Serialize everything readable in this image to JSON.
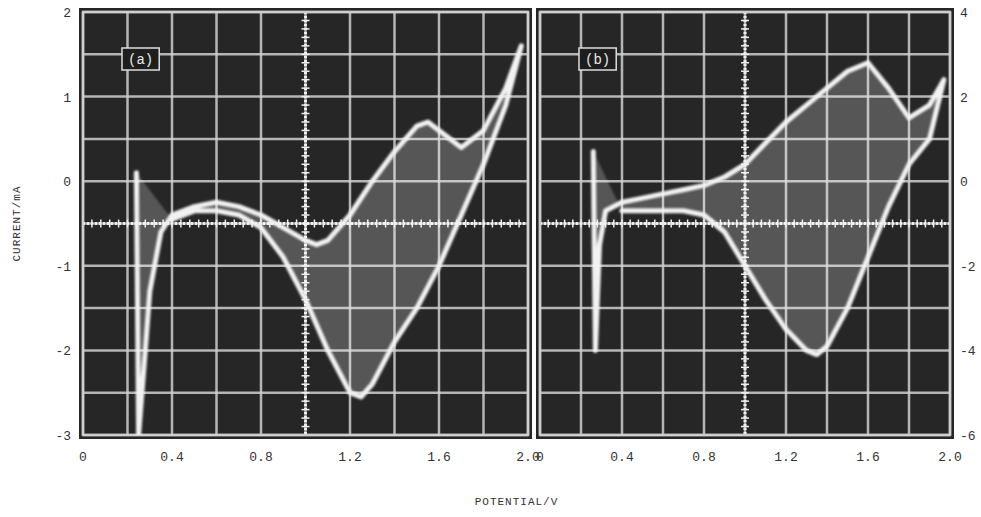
{
  "chart_data": [
    {
      "type": "line",
      "title": "(a)",
      "y_label": "CURRENT/mA",
      "x_label": "POTENTIAL/V",
      "xlim": [
        0,
        2.0
      ],
      "xticks": [
        0,
        0.4,
        0.8,
        1.2,
        1.6,
        {
          "value": 2.0,
          "label": "2.0"
        }
      ],
      "ylim": [
        -3,
        2
      ],
      "yticks": [
        -3,
        -2,
        -1,
        0,
        1,
        2
      ],
      "grid": true,
      "x": [
        0.24,
        0.25,
        0.28,
        0.3,
        0.35,
        0.4,
        0.5,
        0.6,
        0.7,
        0.8,
        0.9,
        1.0,
        1.05,
        1.1,
        1.2,
        1.3,
        1.4,
        1.5,
        1.55,
        1.6,
        1.7,
        1.8,
        1.9,
        1.97,
        1.9,
        1.8,
        1.7,
        1.6,
        1.5,
        1.4,
        1.3,
        1.25,
        1.2,
        1.1,
        1.0,
        0.9,
        0.8,
        0.7,
        0.6,
        0.5,
        0.4
      ],
      "series": [
        {
          "color": "#f2f2f2",
          "values": [
            0.1,
            -3.0,
            -2.0,
            -1.3,
            -0.6,
            -0.4,
            -0.3,
            -0.25,
            -0.3,
            -0.4,
            -0.55,
            -0.7,
            -0.75,
            -0.7,
            -0.4,
            0.0,
            0.35,
            0.65,
            0.7,
            0.6,
            0.4,
            0.6,
            1.1,
            1.6,
            0.9,
            0.2,
            -0.4,
            -1.0,
            -1.5,
            -1.9,
            -2.4,
            -2.55,
            -2.5,
            -2.0,
            -1.4,
            -0.9,
            -0.55,
            -0.4,
            -0.35,
            -0.35,
            -0.45
          ]
        }
      ]
    },
    {
      "type": "line",
      "title": "(b)",
      "xlim": [
        0,
        2.0
      ],
      "xticks": [
        0,
        0.4,
        0.8,
        1.2,
        1.6,
        {
          "value": 2.0,
          "label": "2.0"
        }
      ],
      "ylim": [
        -6,
        4
      ],
      "yticks": [
        -6,
        -4,
        -2,
        0,
        2,
        4
      ],
      "grid": true,
      "x": [
        0.26,
        0.27,
        0.29,
        0.32,
        0.4,
        0.5,
        0.6,
        0.7,
        0.8,
        0.9,
        1.0,
        1.1,
        1.2,
        1.3,
        1.4,
        1.5,
        1.6,
        1.7,
        1.8,
        1.9,
        1.97,
        1.9,
        1.8,
        1.7,
        1.6,
        1.5,
        1.4,
        1.35,
        1.3,
        1.2,
        1.1,
        1.0,
        0.9,
        0.8,
        0.7,
        0.6,
        0.5,
        0.4
      ],
      "series": [
        {
          "color": "#f2f2f2",
          "values": [
            0.7,
            -4.0,
            -1.5,
            -0.7,
            -0.5,
            -0.4,
            -0.3,
            -0.2,
            -0.1,
            0.1,
            0.4,
            0.9,
            1.4,
            1.8,
            2.2,
            2.6,
            2.8,
            2.2,
            1.5,
            1.8,
            2.4,
            1.0,
            0.4,
            -0.6,
            -1.8,
            -3.0,
            -3.9,
            -4.1,
            -4.0,
            -3.5,
            -2.8,
            -2.0,
            -1.2,
            -0.8,
            -0.7,
            -0.7,
            -0.7,
            -0.7
          ]
        }
      ]
    }
  ]
}
